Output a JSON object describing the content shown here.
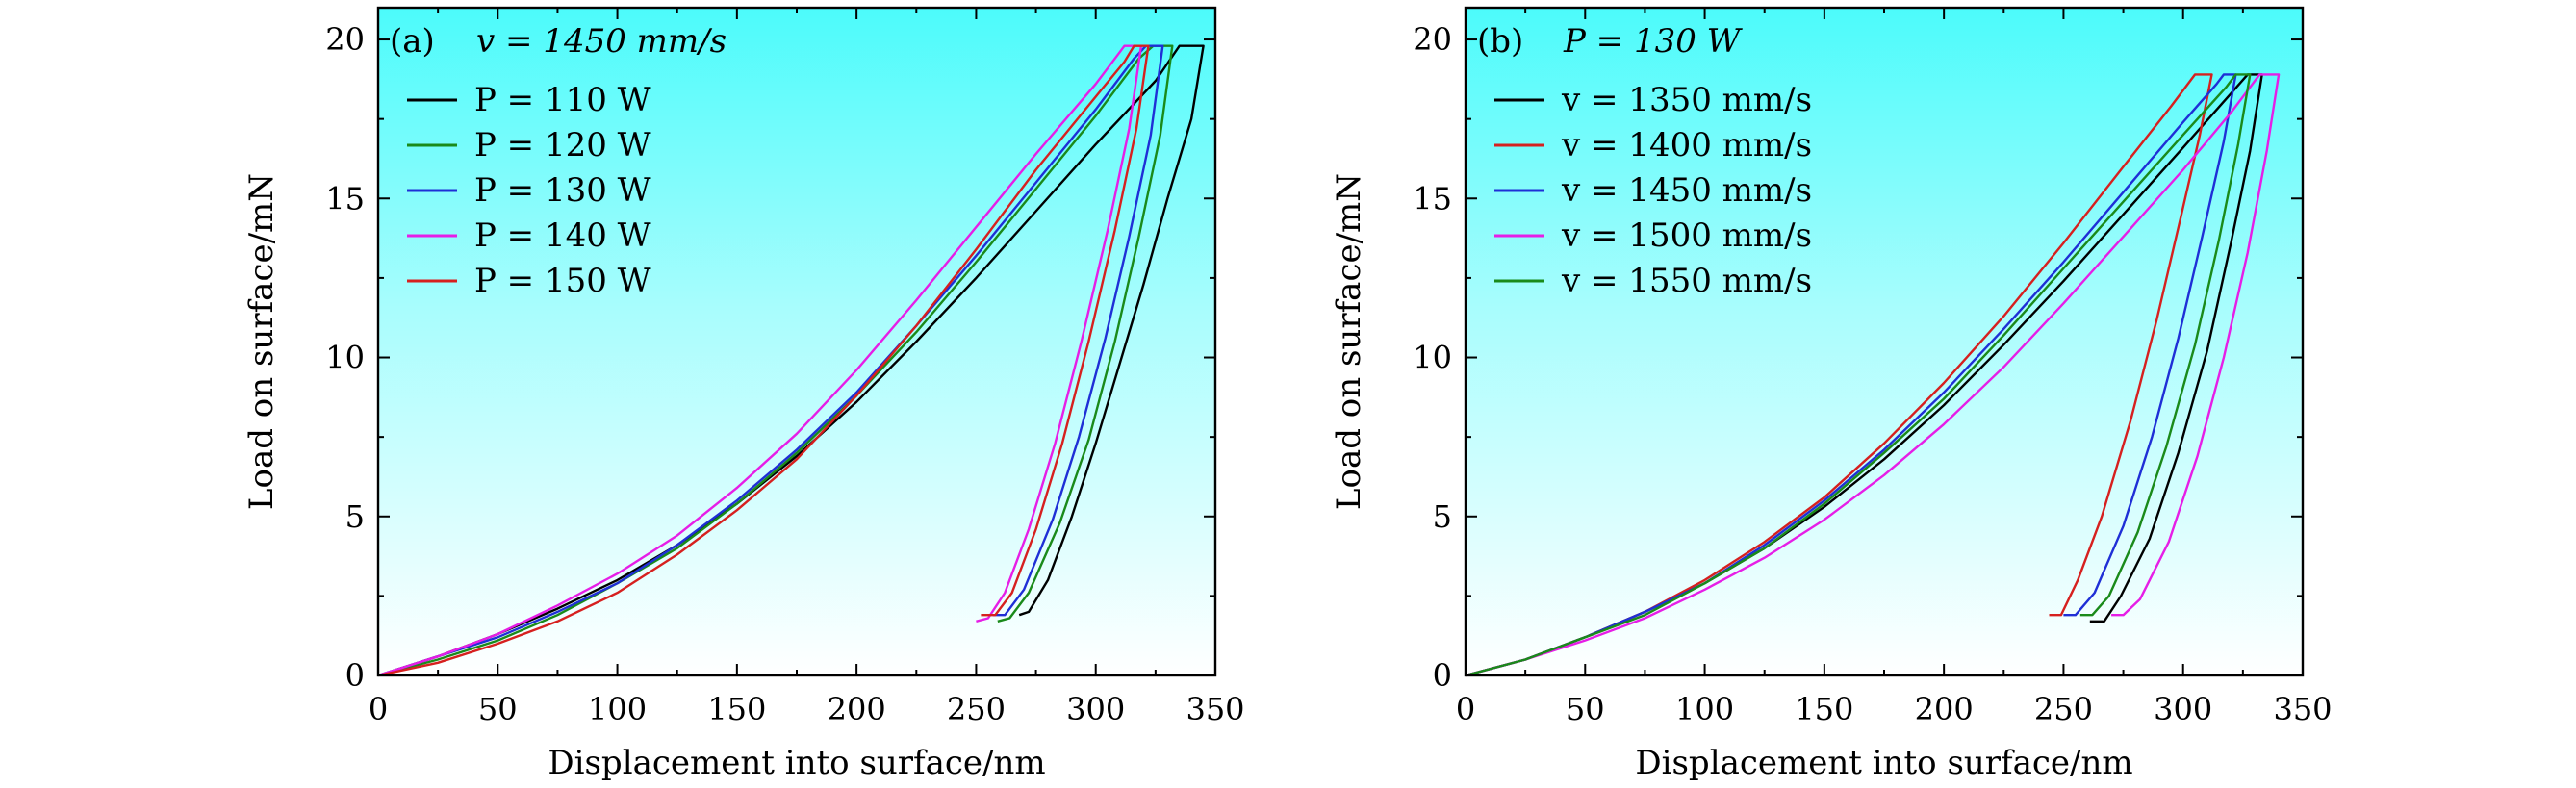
{
  "chart_data": [
    {
      "type": "line",
      "panel": "(a)",
      "title": "v = 1450 mm/s",
      "xlabel": "Displacement into surface/nm",
      "ylabel": "Load on surface/mN",
      "xlim": [
        0,
        350
      ],
      "ylim": [
        0,
        21
      ],
      "xticks": [
        0,
        50,
        100,
        150,
        200,
        250,
        300,
        350
      ],
      "yticks": [
        0,
        5,
        10,
        15,
        20
      ],
      "legend_position": "top-left",
      "series": [
        {
          "name": "P = 110 W",
          "color": "#000000",
          "points": [
            [
              0,
              0
            ],
            [
              25,
              0.6
            ],
            [
              50,
              1.3
            ],
            [
              75,
              2.1
            ],
            [
              100,
              3.0
            ],
            [
              125,
              4.1
            ],
            [
              150,
              5.4
            ],
            [
              175,
              6.9
            ],
            [
              200,
              8.6
            ],
            [
              225,
              10.5
            ],
            [
              250,
              12.5
            ],
            [
              275,
              14.6
            ],
            [
              300,
              16.7
            ],
            [
              325,
              18.7
            ],
            [
              335,
              19.8
            ],
            [
              345,
              19.8
            ],
            [
              340,
              17.5
            ],
            [
              330,
              15.0
            ],
            [
              320,
              12.3
            ],
            [
              310,
              9.8
            ],
            [
              300,
              7.3
            ],
            [
              290,
              5.0
            ],
            [
              280,
              3.0
            ],
            [
              272,
              2.0
            ],
            [
              268,
              1.9
            ]
          ]
        },
        {
          "name": "P = 120 W",
          "color": "#1a8a1a",
          "points": [
            [
              0,
              0
            ],
            [
              25,
              0.5
            ],
            [
              50,
              1.1
            ],
            [
              75,
              1.9
            ],
            [
              100,
              2.9
            ],
            [
              125,
              4.0
            ],
            [
              150,
              5.4
            ],
            [
              175,
              7.0
            ],
            [
              200,
              8.8
            ],
            [
              225,
              10.8
            ],
            [
              250,
              13.0
            ],
            [
              275,
              15.3
            ],
            [
              300,
              17.6
            ],
            [
              318,
              19.4
            ],
            [
              324,
              19.8
            ],
            [
              332,
              19.8
            ],
            [
              327,
              17.0
            ],
            [
              318,
              13.8
            ],
            [
              308,
              10.5
            ],
            [
              297,
              7.4
            ],
            [
              285,
              4.8
            ],
            [
              272,
              2.6
            ],
            [
              264,
              1.8
            ],
            [
              259,
              1.7
            ]
          ]
        },
        {
          "name": "P = 130 W",
          "color": "#1f2fd6",
          "points": [
            [
              0,
              0
            ],
            [
              25,
              0.6
            ],
            [
              50,
              1.2
            ],
            [
              75,
              2.0
            ],
            [
              100,
              2.9
            ],
            [
              125,
              4.1
            ],
            [
              150,
              5.5
            ],
            [
              175,
              7.1
            ],
            [
              200,
              8.9
            ],
            [
              225,
              11.0
            ],
            [
              250,
              13.2
            ],
            [
              275,
              15.5
            ],
            [
              300,
              17.8
            ],
            [
              316,
              19.4
            ],
            [
              321,
              19.8
            ],
            [
              328,
              19.8
            ],
            [
              323,
              17.0
            ],
            [
              314,
              13.8
            ],
            [
              304,
              10.6
            ],
            [
              293,
              7.5
            ],
            [
              282,
              4.9
            ],
            [
              270,
              2.7
            ],
            [
              262,
              1.9
            ],
            [
              257,
              1.9
            ]
          ]
        },
        {
          "name": "P = 140 W",
          "color": "#e61ee6",
          "points": [
            [
              0,
              0
            ],
            [
              25,
              0.6
            ],
            [
              50,
              1.3
            ],
            [
              75,
              2.2
            ],
            [
              100,
              3.2
            ],
            [
              125,
              4.4
            ],
            [
              150,
              5.9
            ],
            [
              175,
              7.6
            ],
            [
              200,
              9.6
            ],
            [
              225,
              11.8
            ],
            [
              250,
              14.1
            ],
            [
              275,
              16.4
            ],
            [
              300,
              18.6
            ],
            [
              310,
              19.6
            ],
            [
              312,
              19.8
            ],
            [
              319,
              19.8
            ],
            [
              314,
              17.2
            ],
            [
              305,
              14.0
            ],
            [
              294,
              10.5
            ],
            [
              283,
              7.3
            ],
            [
              272,
              4.6
            ],
            [
              262,
              2.6
            ],
            [
              255,
              1.8
            ],
            [
              250,
              1.7
            ]
          ]
        },
        {
          "name": "P = 150 W",
          "color": "#d6201f",
          "points": [
            [
              0,
              0
            ],
            [
              25,
              0.4
            ],
            [
              50,
              1.0
            ],
            [
              75,
              1.7
            ],
            [
              100,
              2.6
            ],
            [
              125,
              3.8
            ],
            [
              150,
              5.2
            ],
            [
              175,
              6.8
            ],
            [
              200,
              8.8
            ],
            [
              225,
              11.0
            ],
            [
              250,
              13.4
            ],
            [
              275,
              15.9
            ],
            [
              300,
              18.2
            ],
            [
              312,
              19.3
            ],
            [
              316,
              19.8
            ],
            [
              322,
              19.8
            ],
            [
              317,
              17.2
            ],
            [
              308,
              14.0
            ],
            [
              297,
              10.5
            ],
            [
              286,
              7.3
            ],
            [
              275,
              4.6
            ],
            [
              265,
              2.6
            ],
            [
              258,
              1.9
            ],
            [
              252,
              1.9
            ]
          ]
        }
      ]
    },
    {
      "type": "line",
      "panel": "(b)",
      "title": "P = 130 W",
      "xlabel": "Displacement into surface/nm",
      "ylabel": "Load on surface/mN",
      "xlim": [
        0,
        350
      ],
      "ylim": [
        0,
        21
      ],
      "xticks": [
        0,
        50,
        100,
        150,
        200,
        250,
        300,
        350
      ],
      "yticks": [
        0,
        5,
        10,
        15,
        20
      ],
      "legend_position": "top-left",
      "series": [
        {
          "name": "v = 1350 mm/s",
          "color": "#000000",
          "points": [
            [
              0,
              0
            ],
            [
              25,
              0.5
            ],
            [
              50,
              1.2
            ],
            [
              75,
              2.0
            ],
            [
              100,
              2.9
            ],
            [
              125,
              4.0
            ],
            [
              150,
              5.3
            ],
            [
              175,
              6.8
            ],
            [
              200,
              8.5
            ],
            [
              225,
              10.4
            ],
            [
              250,
              12.4
            ],
            [
              275,
              14.5
            ],
            [
              300,
              16.6
            ],
            [
              320,
              18.3
            ],
            [
              327,
              18.9
            ],
            [
              333,
              18.9
            ],
            [
              328,
              16.5
            ],
            [
              320,
              13.6
            ],
            [
              310,
              10.2
            ],
            [
              298,
              7.0
            ],
            [
              286,
              4.3
            ],
            [
              274,
              2.5
            ],
            [
              267,
              1.7
            ],
            [
              261,
              1.7
            ]
          ]
        },
        {
          "name": "v = 1400 mm/s",
          "color": "#d6201f",
          "points": [
            [
              0,
              0
            ],
            [
              25,
              0.5
            ],
            [
              50,
              1.2
            ],
            [
              75,
              2.0
            ],
            [
              100,
              3.0
            ],
            [
              125,
              4.2
            ],
            [
              150,
              5.6
            ],
            [
              175,
              7.3
            ],
            [
              200,
              9.2
            ],
            [
              225,
              11.3
            ],
            [
              250,
              13.6
            ],
            [
              275,
              16.0
            ],
            [
              295,
              17.9
            ],
            [
              305,
              18.9
            ],
            [
              312,
              18.9
            ],
            [
              307,
              17.0
            ],
            [
              299,
              14.4
            ],
            [
              289,
              11.2
            ],
            [
              278,
              8.0
            ],
            [
              266,
              5.0
            ],
            [
              256,
              3.0
            ],
            [
              249,
              1.9
            ],
            [
              244,
              1.9
            ]
          ]
        },
        {
          "name": "v = 1450 mm/s",
          "color": "#1f2fd6",
          "points": [
            [
              0,
              0
            ],
            [
              25,
              0.5
            ],
            [
              50,
              1.2
            ],
            [
              75,
              2.0
            ],
            [
              100,
              2.9
            ],
            [
              125,
              4.1
            ],
            [
              150,
              5.5
            ],
            [
              175,
              7.1
            ],
            [
              200,
              8.9
            ],
            [
              225,
              10.9
            ],
            [
              250,
              13.0
            ],
            [
              275,
              15.2
            ],
            [
              300,
              17.4
            ],
            [
              314,
              18.6
            ],
            [
              317,
              18.9
            ],
            [
              322,
              18.9
            ],
            [
              317,
              16.8
            ],
            [
              308,
              13.8
            ],
            [
              298,
              10.6
            ],
            [
              287,
              7.5
            ],
            [
              275,
              4.7
            ],
            [
              263,
              2.6
            ],
            [
              255,
              1.9
            ],
            [
              250,
              1.9
            ]
          ]
        },
        {
          "name": "v = 1500 mm/s",
          "color": "#e61ee6",
          "points": [
            [
              0,
              0
            ],
            [
              25,
              0.5
            ],
            [
              50,
              1.1
            ],
            [
              75,
              1.8
            ],
            [
              100,
              2.7
            ],
            [
              125,
              3.7
            ],
            [
              150,
              4.9
            ],
            [
              175,
              6.3
            ],
            [
              200,
              7.9
            ],
            [
              225,
              9.7
            ],
            [
              250,
              11.7
            ],
            [
              275,
              13.8
            ],
            [
              300,
              15.9
            ],
            [
              320,
              17.7
            ],
            [
              332,
              18.9
            ],
            [
              340,
              18.9
            ],
            [
              335,
              16.5
            ],
            [
              327,
              13.3
            ],
            [
              317,
              10.0
            ],
            [
              306,
              6.9
            ],
            [
              294,
              4.2
            ],
            [
              282,
              2.4
            ],
            [
              275,
              1.9
            ],
            [
              270,
              1.9
            ]
          ]
        },
        {
          "name": "v = 1550 mm/s",
          "color": "#1a8a1a",
          "points": [
            [
              0,
              0
            ],
            [
              25,
              0.5
            ],
            [
              50,
              1.2
            ],
            [
              75,
              1.9
            ],
            [
              100,
              2.9
            ],
            [
              125,
              4.0
            ],
            [
              150,
              5.4
            ],
            [
              175,
              7.0
            ],
            [
              200,
              8.7
            ],
            [
              225,
              10.7
            ],
            [
              250,
              12.8
            ],
            [
              275,
              14.9
            ],
            [
              300,
              17.0
            ],
            [
              318,
              18.5
            ],
            [
              322,
              18.9
            ],
            [
              328,
              18.9
            ],
            [
              323,
              16.7
            ],
            [
              315,
              13.7
            ],
            [
              305,
              10.4
            ],
            [
              293,
              7.2
            ],
            [
              281,
              4.5
            ],
            [
              269,
              2.5
            ],
            [
              262,
              1.9
            ],
            [
              257,
              1.9
            ]
          ]
        }
      ]
    }
  ]
}
